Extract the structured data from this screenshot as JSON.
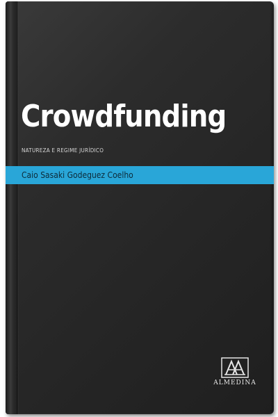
{
  "book": {
    "title": "Crowdfunding",
    "subtitle": "NATUREZA E REGIME JURÍDICO",
    "author": "Caio Sasaki Godeguez Coelho",
    "publisher": "ALMEDINA",
    "logo_icon": "almedina-logo-icon"
  },
  "colors": {
    "cover": "#2a2a2a",
    "author_band": "#29a6d8",
    "title": "#ffffff"
  }
}
